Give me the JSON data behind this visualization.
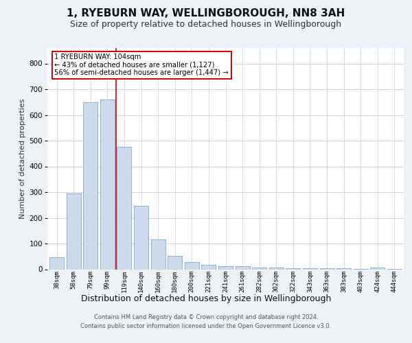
{
  "title": "1, RYEBURN WAY, WELLINGBOROUGH, NN8 3AH",
  "subtitle": "Size of property relative to detached houses in Wellingborough",
  "xlabel": "Distribution of detached houses by size in Wellingborough",
  "ylabel": "Number of detached properties",
  "categories": [
    "38sqm",
    "58sqm",
    "79sqm",
    "99sqm",
    "119sqm",
    "140sqm",
    "160sqm",
    "180sqm",
    "200sqm",
    "221sqm",
    "241sqm",
    "261sqm",
    "282sqm",
    "302sqm",
    "322sqm",
    "343sqm",
    "363sqm",
    "383sqm",
    "403sqm",
    "424sqm",
    "444sqm"
  ],
  "values": [
    47,
    295,
    650,
    660,
    475,
    247,
    115,
    52,
    27,
    17,
    13,
    12,
    7,
    6,
    5,
    4,
    3,
    3,
    2,
    8,
    2
  ],
  "bar_color": "#ccdaeb",
  "bar_edge_color": "#7aaac8",
  "ylim": [
    0,
    860
  ],
  "yticks": [
    0,
    100,
    200,
    300,
    400,
    500,
    600,
    700,
    800
  ],
  "red_line_x": 3.5,
  "annotation_text": "1 RYEBURN WAY: 104sqm\n← 43% of detached houses are smaller (1,127)\n56% of semi-detached houses are larger (1,447) →",
  "footer_line1": "Contains HM Land Registry data © Crown copyright and database right 2024.",
  "footer_line2": "Contains public sector information licensed under the Open Government Licence v3.0.",
  "background_color": "#eef2f7",
  "plot_bg_color": "#ffffff",
  "grid_color": "#c5d3e0",
  "title_fontsize": 11,
  "subtitle_fontsize": 9,
  "xlabel_fontsize": 9,
  "ylabel_fontsize": 8,
  "annotation_box_color": "#ffffff",
  "annotation_box_edge": "#cc0000",
  "red_line_color": "#cc0000"
}
